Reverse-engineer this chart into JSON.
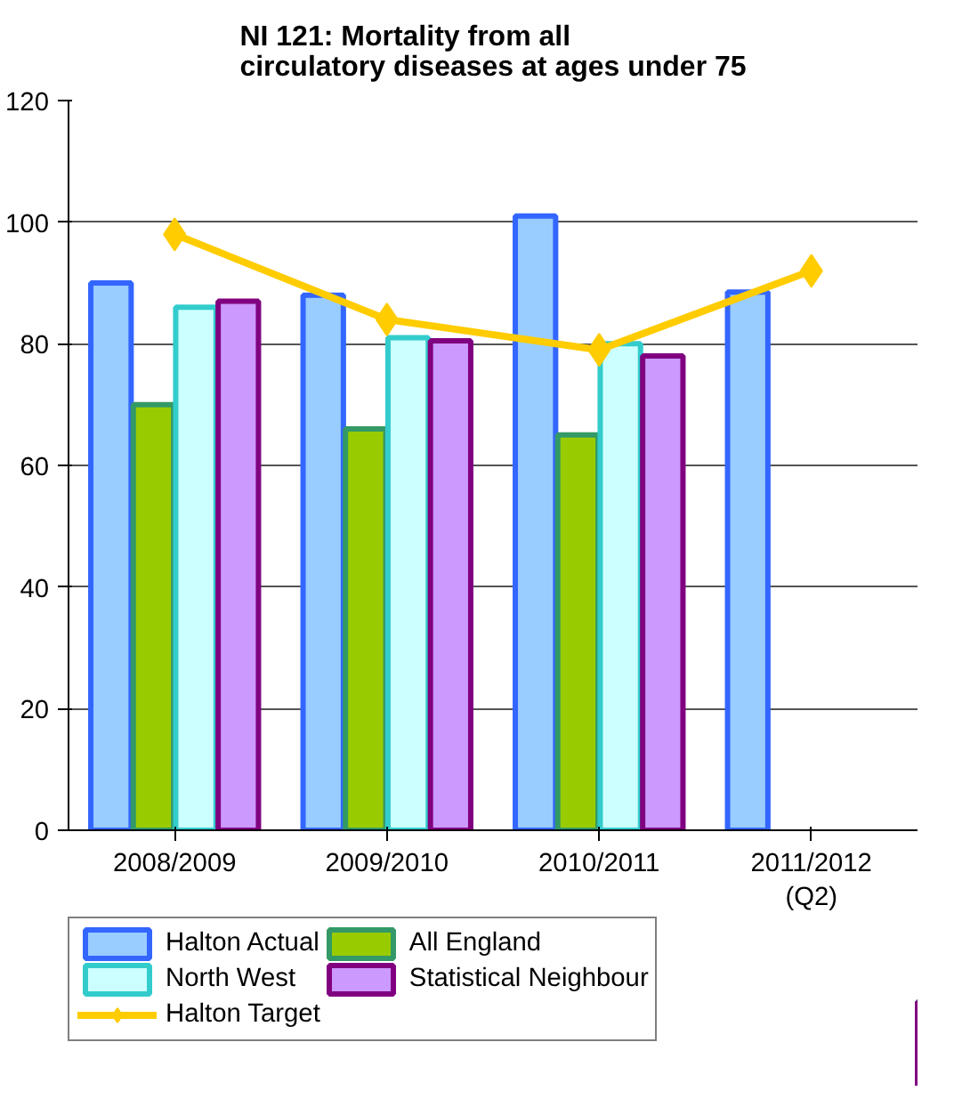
{
  "chart_data": {
    "type": "bar",
    "title": "NI 121: Mortality from all circulatory diseases at ages under 75",
    "categories": [
      "2008/2009",
      "2009/2010",
      "2010/2011",
      "2011/2012\n(Q2)"
    ],
    "series": [
      {
        "name": "Halton Actual",
        "color": "#99ccff",
        "values": [
          90,
          88,
          101,
          88.5
        ]
      },
      {
        "name": "All England",
        "color": "#99cc00",
        "values": [
          70,
          66,
          65,
          null
        ]
      },
      {
        "name": "North West",
        "color": "#ccffff",
        "values": [
          86,
          81,
          80,
          null
        ]
      },
      {
        "name": "Statistical Neighbour",
        "color": "#cc99ff",
        "values": [
          87,
          80.5,
          78,
          null
        ]
      },
      {
        "name": "Halton Target",
        "type": "line",
        "color": "#ffcc00",
        "marker": "diamond",
        "values": [
          98,
          84,
          79,
          92
        ]
      }
    ],
    "ylim": [
      0,
      120
    ],
    "yticks": [
      0,
      20,
      40,
      60,
      80,
      100,
      120
    ],
    "grid": "y",
    "legend": "bottom"
  }
}
